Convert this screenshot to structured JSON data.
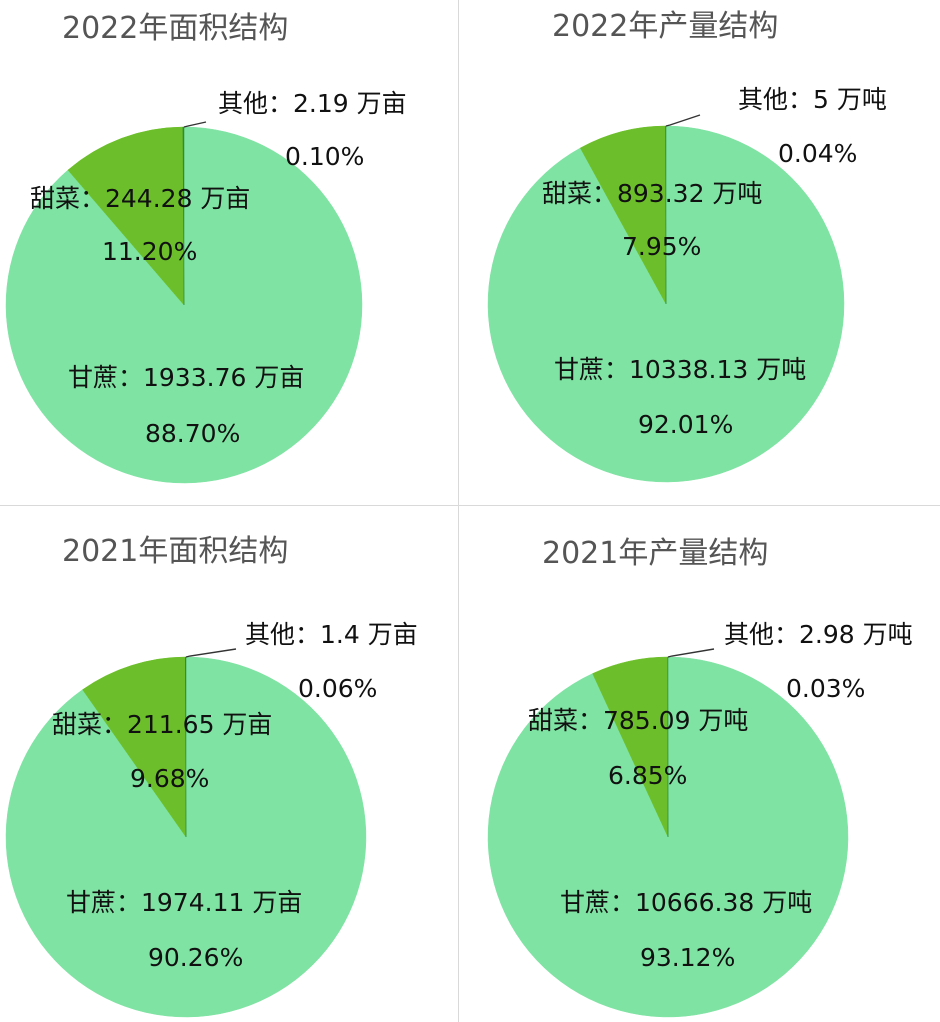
{
  "chart_data": [
    {
      "type": "pie",
      "title": "2022年面积结构",
      "slices": [
        {
          "name": "甘蔗",
          "value": 1933.76,
          "unit": "万亩",
          "percent": "88.70%"
        },
        {
          "name": "甜菜",
          "value": 244.28,
          "unit": "万亩",
          "percent": "11.20%"
        },
        {
          "name": "其他",
          "value": 2.19,
          "unit": "万亩",
          "percent": "0.10%"
        }
      ]
    },
    {
      "type": "pie",
      "title": "2022年产量结构",
      "slices": [
        {
          "name": "甘蔗",
          "value": 10338.13,
          "unit": "万吨",
          "percent": "92.01%"
        },
        {
          "name": "甜菜",
          "value": 893.32,
          "unit": "万吨",
          "percent": "7.95%"
        },
        {
          "name": "其他",
          "value": 5,
          "unit": "万吨",
          "percent": "0.04%"
        }
      ]
    },
    {
      "type": "pie",
      "title": "2021年面积结构",
      "slices": [
        {
          "name": "甘蔗",
          "value": 1974.11,
          "unit": "万亩",
          "percent": "90.26%"
        },
        {
          "name": "甜菜",
          "value": 211.65,
          "unit": "万亩",
          "percent": "9.68%"
        },
        {
          "name": "其他",
          "value": 1.4,
          "unit": "万亩",
          "percent": "0.06%"
        }
      ]
    },
    {
      "type": "pie",
      "title": "2021年产量结构",
      "slices": [
        {
          "name": "甘蔗",
          "value": 10666.38,
          "unit": "万吨",
          "percent": "93.12%"
        },
        {
          "name": "甜菜",
          "value": 785.09,
          "unit": "万吨",
          "percent": "6.85%"
        },
        {
          "name": "其他",
          "value": 2.98,
          "unit": "万吨",
          "percent": "0.03%"
        }
      ]
    }
  ],
  "colors": {
    "甘蔗": "#7fe3a3",
    "甜菜": "#6cbf2a",
    "其他": "#2e8b2e",
    "leader": "#333333"
  }
}
